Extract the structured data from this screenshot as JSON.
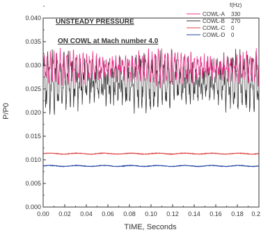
{
  "chart_data": {
    "type": "line",
    "title_lines": [
      "UNSTEADY PRESSURE",
      "ON COWL at Mach number 4.0"
    ],
    "xlabel": "TIME, Seconds",
    "ylabel": "P/P0",
    "xlim": [
      0,
      0.2
    ],
    "ylim": [
      0,
      0.04
    ],
    "x_ticks": [
      "0.00",
      "0.02",
      "0.04",
      "0.06",
      "0.08",
      "0.10",
      "0.12",
      "0.14",
      "0.16",
      "0.18",
      "0.2"
    ],
    "y_ticks": [
      "0.000",
      "0.005",
      "0.010",
      "0.015",
      "0.020",
      "0.025",
      "0.030",
      "0.035",
      "0.040"
    ],
    "legend_header": "f(Hz)",
    "legend_position": "top-right",
    "series": [
      {
        "name": "COWL-A",
        "freq_label": "330",
        "color": "#e8338a",
        "mean": 0.0295,
        "amplitude": 0.0028,
        "frequency_hz": 330
      },
      {
        "name": "COWL-B",
        "freq_label": "270",
        "color": "#333333",
        "mean": 0.0265,
        "amplitude": 0.0048,
        "frequency_hz": 270
      },
      {
        "name": "COWL-C",
        "freq_label": "0",
        "color": "#e04040",
        "mean": 0.0113,
        "amplitude": 0.0001,
        "frequency_hz": 0
      },
      {
        "name": "COWL-D",
        "freq_label": "0",
        "color": "#2040a0",
        "mean": 0.0087,
        "amplitude": 0.0001,
        "frequency_hz": 0
      }
    ]
  }
}
